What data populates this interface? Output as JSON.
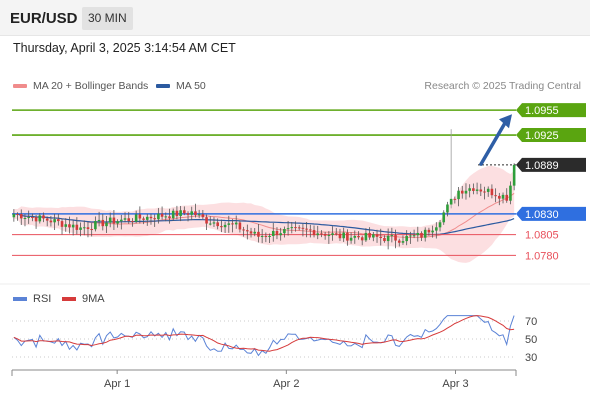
{
  "header": {
    "symbol": "EUR/USD",
    "timeframe": "30 MIN"
  },
  "datetime": "Thursday, April 3, 2025 3:14:54 AM CET",
  "legend": {
    "ma20": "MA 20 + Bollinger Bands",
    "ma50": "MA 50",
    "credit": "Research © 2025 Trading Central"
  },
  "rsi_legend": {
    "rsi": "RSI",
    "ma9": "9MA"
  },
  "colors": {
    "green": "#5aa510",
    "blue": "#2f6fe0",
    "red": "#e8505b",
    "current": "#2b2b2b",
    "ma20": "#f08c8c",
    "ma50": "#2b5aa0",
    "band": "#fbd9dc",
    "arrow": "#2e5ea6"
  },
  "chart_data": [
    {
      "type": "candlestick",
      "ylim": [
        1.076,
        1.0972
      ],
      "x_ticks": [
        {
          "label": "Apr 1",
          "index": 27
        },
        {
          "label": "Apr 2",
          "index": 75
        },
        {
          "label": "Apr 3",
          "index": 123
        }
      ],
      "levels": [
        {
          "name": "resistance-2",
          "value": 1.0955,
          "label": "1.0955",
          "color": "#5aa510",
          "style": "tag"
        },
        {
          "name": "resistance-1",
          "value": 1.0925,
          "label": "1.0925",
          "color": "#5aa510",
          "style": "tag"
        },
        {
          "name": "current-price",
          "value": 1.0889,
          "label": "1.0889",
          "color": "#2b2b2b",
          "style": "tag-dotted"
        },
        {
          "name": "pivot",
          "value": 1.083,
          "label": "1.0830",
          "color": "#2f6fe0",
          "style": "tag"
        },
        {
          "name": "support-1",
          "value": 1.0805,
          "label": "1.0805",
          "color": "#e8505b",
          "style": "text"
        },
        {
          "name": "support-2",
          "value": 1.078,
          "label": "1.0780",
          "color": "#e8505b",
          "style": "text"
        }
      ],
      "arrow": {
        "from_value": 1.089,
        "to_value": 1.095
      }
    },
    {
      "type": "line",
      "name": "RSI panel",
      "ylim": [
        20,
        80
      ],
      "y_ticks": [
        70,
        50,
        30
      ],
      "series": [
        {
          "name": "RSI",
          "color": "#5b83d6"
        },
        {
          "name": "9MA",
          "color": "#d63b3b"
        }
      ]
    }
  ]
}
